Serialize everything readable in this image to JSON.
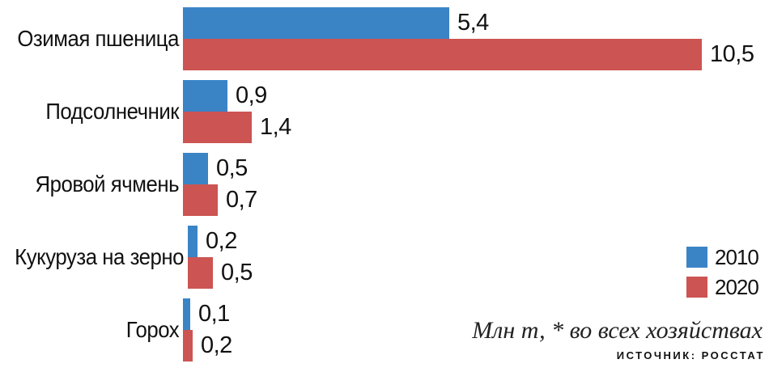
{
  "chart_data": {
    "type": "bar",
    "orientation": "horizontal",
    "categories": [
      "Озимая пшеница",
      "Подсолнечник",
      "Яровой ячмень",
      "Кукуруза на зерно",
      "Горох"
    ],
    "series": [
      {
        "name": "2010",
        "color": "#3a84c6",
        "values": [
          5.4,
          0.9,
          0.5,
          0.2,
          0.1
        ]
      },
      {
        "name": "2020",
        "color": "#cc5452",
        "values": [
          10.5,
          1.4,
          0.7,
          0.5,
          0.2
        ]
      }
    ],
    "value_labels": [
      [
        "5,4",
        "0,9",
        "0,5",
        "0,2",
        "0,1"
      ],
      [
        "10,5",
        "1,4",
        "0,7",
        "0,5",
        "0,2"
      ]
    ],
    "xlim": [
      0,
      11.8
    ],
    "grid": "off",
    "legend_position": "right",
    "note": "Млн т, * во всех хозяйствах",
    "source": "ИСТОЧНИК: РОССТАТ",
    "colors": {
      "series_2010": "#3a84c6",
      "series_2020": "#cc5452",
      "text": "#111111",
      "background": "#ffffff"
    }
  }
}
